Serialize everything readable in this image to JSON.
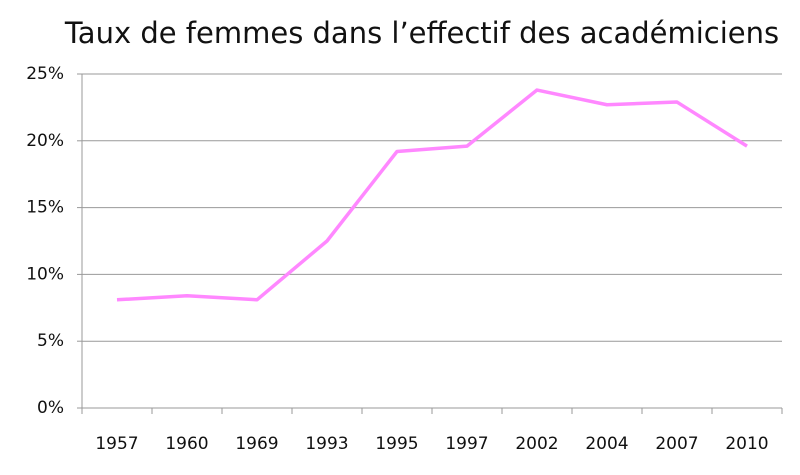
{
  "chart_data": {
    "type": "line",
    "title": "Taux de femmes dans l’effectif des académiciens",
    "categories": [
      "1957",
      "1960",
      "1969",
      "1993",
      "1995",
      "1997",
      "2002",
      "2004",
      "2007",
      "2010"
    ],
    "values": [
      8.1,
      8.4,
      8.1,
      12.5,
      19.2,
      19.6,
      23.8,
      22.7,
      22.9,
      19.6
    ],
    "color": "#ff88ff",
    "ylim": [
      0,
      25
    ],
    "yticks": [
      {
        "value": 0,
        "label": "0%"
      },
      {
        "value": 5,
        "label": "5%"
      },
      {
        "value": 10,
        "label": "10%"
      },
      {
        "value": 15,
        "label": "15%"
      },
      {
        "value": 20,
        "label": "20%"
      },
      {
        "value": 25,
        "label": "25%"
      }
    ],
    "grid": true
  }
}
